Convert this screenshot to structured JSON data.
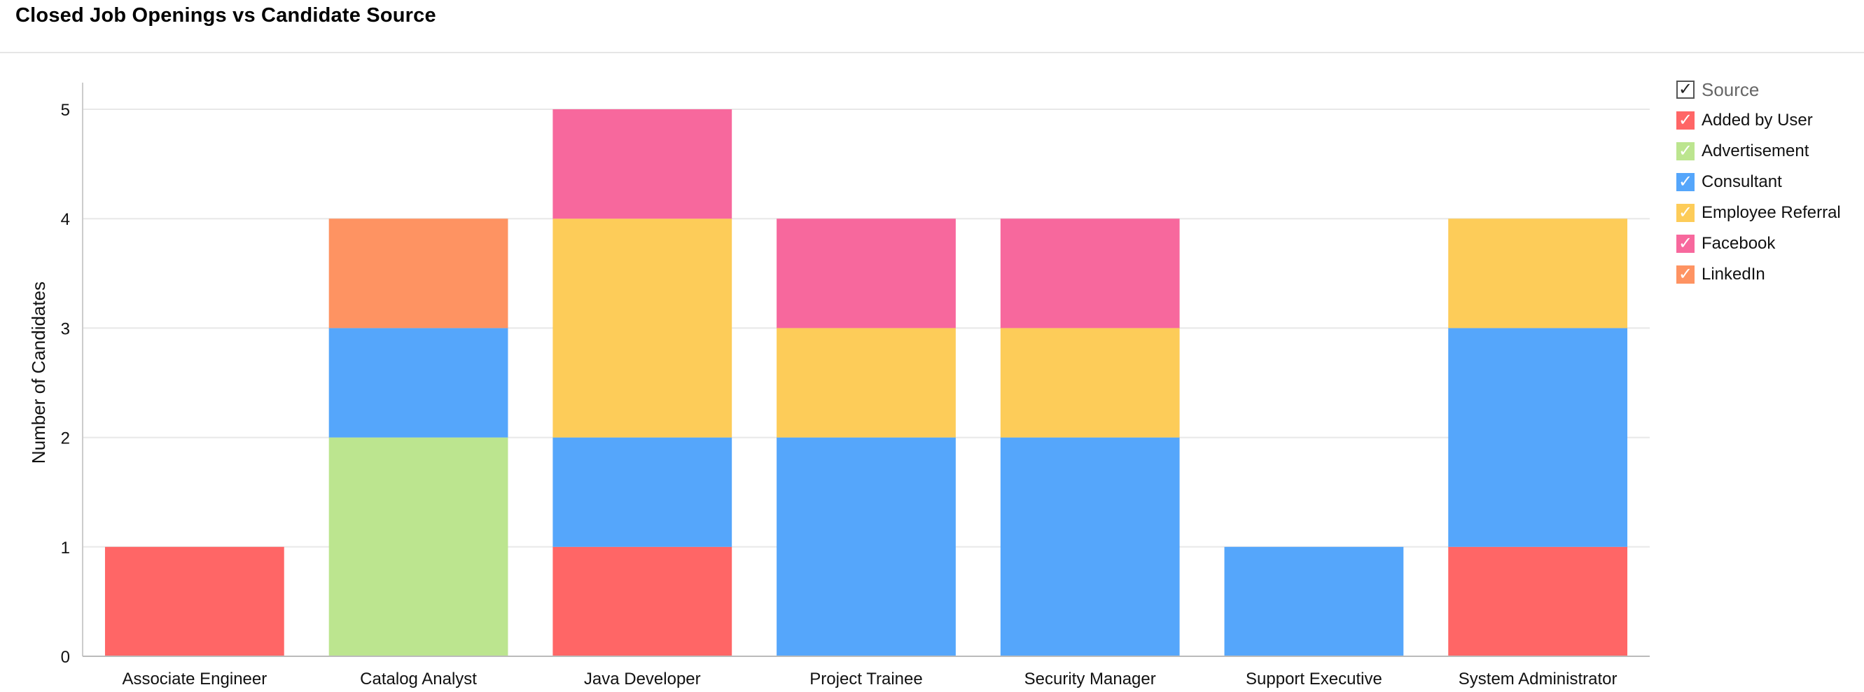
{
  "title": "Closed Job Openings vs Candidate Source",
  "legend": {
    "header": "Source",
    "check_glyph": "✓"
  },
  "chart_data": {
    "type": "bar",
    "stacked": true,
    "title": "Closed Job Openings vs Candidate Source",
    "xlabel": "",
    "ylabel": "Number of Candidates",
    "ylim": [
      0,
      5
    ],
    "yticks": [
      0,
      1,
      2,
      3,
      4,
      5
    ],
    "grid": true,
    "legend_title": "Source",
    "legend_position": "right",
    "categories": [
      "Associate Engineer",
      "Catalog Analyst",
      "Java Developer",
      "Project Trainee",
      "Security Manager",
      "Support Executive",
      "System Administrator"
    ],
    "series": [
      {
        "name": "Added by User",
        "color": "#ff6666",
        "values": [
          1,
          0,
          1,
          0,
          0,
          0,
          1
        ]
      },
      {
        "name": "Advertisement",
        "color": "#bce58f",
        "values": [
          0,
          2,
          0,
          0,
          0,
          0,
          0
        ]
      },
      {
        "name": "Consultant",
        "color": "#55a6fb",
        "values": [
          0,
          1,
          1,
          2,
          2,
          1,
          2
        ]
      },
      {
        "name": "Employee Referral",
        "color": "#fdcc59",
        "values": [
          0,
          0,
          2,
          1,
          1,
          0,
          1
        ]
      },
      {
        "name": "Facebook",
        "color": "#f7689d",
        "values": [
          0,
          0,
          1,
          1,
          1,
          0,
          0
        ]
      },
      {
        "name": "LinkedIn",
        "color": "#fe9362",
        "values": [
          0,
          1,
          0,
          0,
          0,
          0,
          0
        ]
      }
    ]
  }
}
